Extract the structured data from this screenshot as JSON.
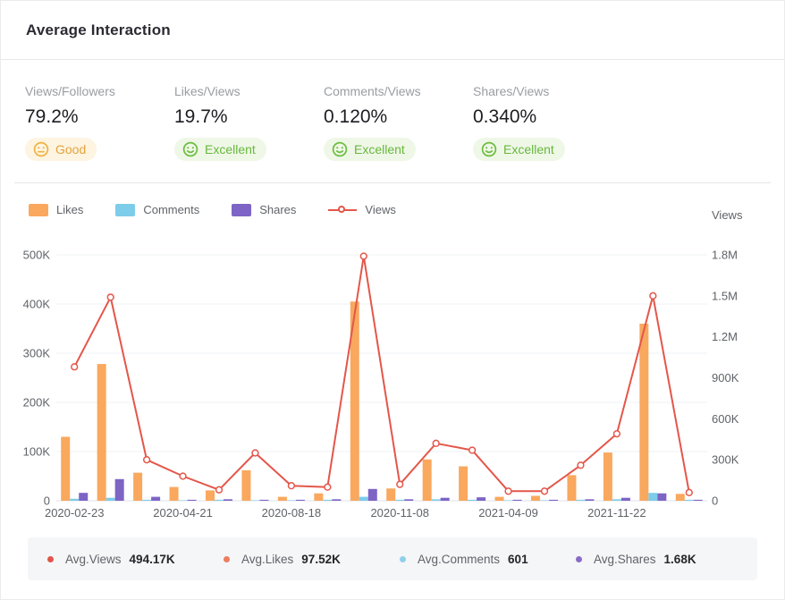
{
  "header": {
    "title": "Average Interaction"
  },
  "metrics": [
    {
      "label": "Views/Followers",
      "value": "79.2%",
      "rating": "Good",
      "tone": "warning",
      "badge_bg": "#fdf4e1",
      "badge_color": "#e5a33c"
    },
    {
      "label": "Likes/Views",
      "value": "19.7%",
      "rating": "Excellent",
      "tone": "success",
      "badge_bg": "#eff7e7",
      "badge_color": "#67b83c"
    },
    {
      "label": "Comments/Views",
      "value": "0.120%",
      "rating": "Excellent",
      "tone": "success",
      "badge_bg": "#eff7e7",
      "badge_color": "#67b83c"
    },
    {
      "label": "Shares/Views",
      "value": "0.340%",
      "rating": "Excellent",
      "tone": "success",
      "badge_bg": "#eff7e7",
      "badge_color": "#67b83c"
    }
  ],
  "legend": {
    "items": [
      {
        "label": "Likes",
        "type": "bar",
        "color": "#F9A85E"
      },
      {
        "label": "Comments",
        "type": "bar",
        "color": "#7DCCE9"
      },
      {
        "label": "Shares",
        "type": "bar",
        "color": "#7D64C5"
      },
      {
        "label": "Views",
        "type": "line",
        "color": "#E4564A"
      }
    ]
  },
  "chart_data": {
    "type": "bar+line",
    "group_count": 18,
    "x_tick_labels": [
      {
        "index": 0,
        "label": "2020-02-23"
      },
      {
        "index": 3,
        "label": "2020-04-21"
      },
      {
        "index": 6,
        "label": "2020-08-18"
      },
      {
        "index": 9,
        "label": "2020-11-08"
      },
      {
        "index": 12,
        "label": "2021-04-09"
      },
      {
        "index": 15,
        "label": "2021-11-22"
      }
    ],
    "series": [
      {
        "name": "Likes",
        "type": "bar",
        "axis": "left",
        "color": "#F9A85E",
        "unit": "K",
        "values": [
          130,
          278,
          57,
          28,
          21,
          62,
          8,
          15,
          405,
          25,
          84,
          70,
          8,
          10,
          52,
          98,
          360,
          14
        ]
      },
      {
        "name": "Comments",
        "type": "bar",
        "axis": "left",
        "color": "#7DCCE9",
        "unit": "K",
        "values": [
          4,
          6,
          2,
          1,
          2,
          1,
          1,
          2,
          8,
          2,
          3,
          2,
          1,
          1,
          2,
          3,
          16,
          2
        ]
      },
      {
        "name": "Shares",
        "type": "bar",
        "axis": "left",
        "color": "#7D64C5",
        "unit": "K",
        "values": [
          16,
          44,
          8,
          2,
          3,
          2,
          2,
          3,
          24,
          3,
          6,
          7,
          2,
          2,
          3,
          6,
          15,
          2
        ]
      },
      {
        "name": "Views",
        "type": "line",
        "axis": "right",
        "color": "#E4564A",
        "unit": "K",
        "values": [
          980,
          1490,
          300,
          180,
          80,
          350,
          110,
          100,
          1790,
          120,
          420,
          370,
          70,
          70,
          260,
          490,
          1500,
          60
        ]
      }
    ],
    "left_axis": {
      "ticks": [
        "0",
        "100K",
        "200K",
        "300K",
        "400K",
        "500K"
      ],
      "max": 500,
      "grid": true
    },
    "right_axis": {
      "title": "Views",
      "ticks": [
        "0",
        "300K",
        "600K",
        "900K",
        "1.2M",
        "1.5M",
        "1.8M"
      ],
      "max": 1800
    }
  },
  "footer": {
    "stats": [
      {
        "label": "Avg.Views",
        "value": "494.17K",
        "color": "#E25449"
      },
      {
        "label": "Avg.Likes",
        "value": "97.52K",
        "color": "#ED7D60"
      },
      {
        "label": "Avg.Comments",
        "value": "601",
        "color": "#8FCFEA"
      },
      {
        "label": "Avg.Shares",
        "value": "1.68K",
        "color": "#8A6BC9"
      }
    ]
  },
  "colors": {
    "likes_bar": "#F9A85E",
    "comments_bar": "#7DCCE9",
    "shares_bar": "#7D64C5",
    "views_line": "#E4564A",
    "warning_text": "#e5a33c",
    "warning_bg": "#fdf4e1",
    "success_text": "#67b83c",
    "success_bg": "#eff7e7",
    "axis_text": "#5f6368",
    "grid_line": "#eff0f3",
    "footer_bg": "#f5f6f8"
  }
}
